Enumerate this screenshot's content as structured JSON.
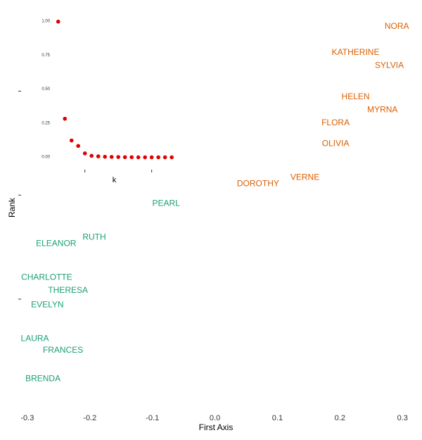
{
  "chart_data": [
    {
      "type": "scatter",
      "xlabel": "First Axis",
      "ylabel": "Rank",
      "xlim": [
        -0.31,
        0.32
      ],
      "x_ticks": [
        -0.3,
        -0.2,
        -0.1,
        0.0,
        0.1,
        0.2,
        0.3
      ],
      "x_tick_labels": [
        "-0.3",
        "-0.2",
        "-0.1",
        "0.0",
        "0.1",
        "0.2",
        "0.3"
      ],
      "ylim": [
        -0.7,
        14.6
      ],
      "y_ticks": [
        3.5,
        7.5,
        11.5
      ],
      "grid": false,
      "colors": {
        "group_1": "#1b9e77",
        "group_2": "#d95f02"
      },
      "points": [
        {
          "label": "NORA",
          "x": 0.291,
          "y": 14,
          "group": "group_2"
        },
        {
          "label": "KATHERINE",
          "x": 0.225,
          "y": 13,
          "group": "group_2"
        },
        {
          "label": "SYLVIA",
          "x": 0.279,
          "y": 12.5,
          "group": "group_2"
        },
        {
          "label": "HELEN",
          "x": 0.225,
          "y": 11.3,
          "group": "group_2"
        },
        {
          "label": "MYRNA",
          "x": 0.268,
          "y": 10.8,
          "group": "group_2"
        },
        {
          "label": "FLORA",
          "x": 0.193,
          "y": 10.3,
          "group": "group_2"
        },
        {
          "label": "OLIVIA",
          "x": 0.193,
          "y": 9.5,
          "group": "group_2"
        },
        {
          "label": "VERNE",
          "x": 0.144,
          "y": 8.2,
          "group": "group_2"
        },
        {
          "label": "DOROTHY",
          "x": 0.069,
          "y": 7.95,
          "group": "group_2"
        },
        {
          "label": "PEARL",
          "x": -0.078,
          "y": 7.2,
          "group": "group_1"
        },
        {
          "label": "RUTH",
          "x": -0.193,
          "y": 5.9,
          "group": "group_1"
        },
        {
          "label": "ELEANOR",
          "x": -0.254,
          "y": 5.65,
          "group": "group_1"
        },
        {
          "label": "CHARLOTTE",
          "x": -0.269,
          "y": 4.35,
          "group": "group_1"
        },
        {
          "label": "THERESA",
          "x": -0.235,
          "y": 3.85,
          "group": "group_1"
        },
        {
          "label": "EVELYN",
          "x": -0.268,
          "y": 3.3,
          "group": "group_1"
        },
        {
          "label": "LAURA",
          "x": -0.288,
          "y": 2.0,
          "group": "group_1"
        },
        {
          "label": "FRANCES",
          "x": -0.243,
          "y": 1.55,
          "group": "group_1"
        },
        {
          "label": "BRENDA",
          "x": -0.275,
          "y": 0.45,
          "group": "group_1"
        }
      ]
    },
    {
      "type": "scatter",
      "xlabel": "k",
      "ylabel": "",
      "xlim": [
        0.5,
        18.3
      ],
      "ylim": [
        -0.09,
        1.04
      ],
      "y_ticks": [
        0.0,
        0.25,
        0.5,
        0.75,
        1.0
      ],
      "y_tick_labels": [
        "0.00",
        "0.25",
        "0.50",
        "0.75",
        "1.00"
      ],
      "x_ticks": [
        5,
        15
      ],
      "grid": false,
      "point_color": "#e00000",
      "x": [
        1,
        2,
        3,
        4,
        5,
        6,
        7,
        8,
        9,
        10,
        11,
        12,
        13,
        14,
        15,
        16,
        17,
        18
      ],
      "y": [
        1.0,
        0.285,
        0.125,
        0.085,
        0.03,
        0.012,
        0.008,
        0.005,
        0.004,
        0.003,
        0.002,
        0.002,
        0.001,
        0.001,
        0.001,
        0.001,
        0.001,
        0.001
      ]
    }
  ]
}
